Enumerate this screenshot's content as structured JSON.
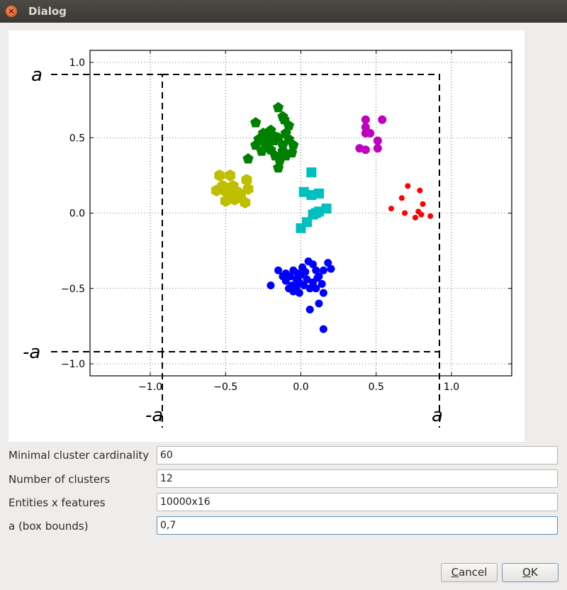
{
  "window": {
    "title": "Dialog",
    "close_icon": "close-icon",
    "close_color": "#e9541f"
  },
  "chart_data": {
    "type": "scatter",
    "xlim": [
      -1.4,
      1.4
    ],
    "ylim": [
      -1.08,
      1.08
    ],
    "x_ticks": [
      -1.0,
      -0.5,
      0.0,
      0.5,
      1.0
    ],
    "x_tick_labels": [
      "−1.0",
      "−0.5",
      "0.0",
      "0.5",
      "1.0"
    ],
    "y_ticks": [
      1.0,
      0.5,
      0.0,
      -0.5,
      -1.0
    ],
    "y_tick_labels": [
      "1.0",
      "0.5",
      "0.0",
      "−0.5",
      "−1.0"
    ],
    "grid": true,
    "box": {
      "bound": 0.92,
      "labels": {
        "left_top": "a",
        "left_bottom": "-a",
        "bottom_left": "-a",
        "bottom_right": "a"
      }
    },
    "series": [
      {
        "color": "#008000",
        "marker": "pentagon",
        "points": [
          [
            -0.3,
            0.6
          ],
          [
            -0.15,
            0.7
          ],
          [
            -0.12,
            0.64
          ],
          [
            -0.2,
            0.55
          ],
          [
            -0.25,
            0.53
          ],
          [
            -0.28,
            0.49
          ],
          [
            -0.3,
            0.45
          ],
          [
            -0.22,
            0.5
          ],
          [
            -0.18,
            0.48
          ],
          [
            -0.15,
            0.5
          ],
          [
            -0.1,
            0.53
          ],
          [
            -0.08,
            0.49
          ],
          [
            -0.05,
            0.45
          ],
          [
            -0.12,
            0.45
          ],
          [
            -0.2,
            0.42
          ],
          [
            -0.26,
            0.41
          ],
          [
            -0.17,
            0.38
          ],
          [
            -0.14,
            0.35
          ],
          [
            -0.1,
            0.38
          ],
          [
            -0.15,
            0.3
          ],
          [
            -0.35,
            0.36
          ],
          [
            -0.22,
            0.45
          ],
          [
            -0.08,
            0.58
          ],
          [
            -0.11,
            0.62
          ],
          [
            -0.19,
            0.52
          ],
          [
            -0.12,
            0.41
          ],
          [
            -0.06,
            0.4
          ],
          [
            -0.24,
            0.47
          ]
        ]
      },
      {
        "color": "#bfbf00",
        "marker": "hexagon",
        "points": [
          [
            -0.54,
            0.25
          ],
          [
            -0.47,
            0.25
          ],
          [
            -0.36,
            0.22
          ],
          [
            -0.52,
            0.18
          ],
          [
            -0.45,
            0.18
          ],
          [
            -0.35,
            0.16
          ],
          [
            -0.56,
            0.15
          ],
          [
            -0.48,
            0.14
          ],
          [
            -0.42,
            0.14
          ],
          [
            -0.4,
            0.12
          ],
          [
            -0.5,
            0.08
          ],
          [
            -0.44,
            0.09
          ],
          [
            -0.37,
            0.07
          ],
          [
            -0.51,
            0.15
          ]
        ]
      },
      {
        "color": "#00bfbf",
        "marker": "square",
        "points": [
          [
            0.07,
            0.27
          ],
          [
            0.02,
            0.14
          ],
          [
            0.07,
            0.12
          ],
          [
            0.12,
            0.13
          ],
          [
            0.17,
            0.03
          ],
          [
            0.08,
            -0.01
          ],
          [
            0.1,
            0.0
          ],
          [
            0.04,
            -0.06
          ],
          [
            0.0,
            -0.1
          ],
          [
            0.12,
            0.01
          ]
        ]
      },
      {
        "color": "#bf00bf",
        "marker": "circle",
        "size": 6,
        "points": [
          [
            0.43,
            0.62
          ],
          [
            0.54,
            0.62
          ],
          [
            0.43,
            0.57
          ],
          [
            0.43,
            0.53
          ],
          [
            0.46,
            0.53
          ],
          [
            0.51,
            0.48
          ],
          [
            0.39,
            0.43
          ],
          [
            0.43,
            0.42
          ],
          [
            0.51,
            0.43
          ]
        ]
      },
      {
        "color": "#ff0000",
        "marker": "circle",
        "size": 4,
        "points": [
          [
            0.71,
            0.18
          ],
          [
            0.79,
            0.15
          ],
          [
            0.67,
            0.1
          ],
          [
            0.81,
            0.06
          ],
          [
            0.6,
            0.03
          ],
          [
            0.69,
            0.0
          ],
          [
            0.78,
            0.01
          ],
          [
            0.8,
            -0.01
          ],
          [
            0.86,
            -0.02
          ],
          [
            0.76,
            -0.03
          ]
        ]
      },
      {
        "color": "#0000ff",
        "marker": "circle",
        "size": 5.5,
        "points": [
          [
            -0.15,
            -0.38
          ],
          [
            -0.12,
            -0.42
          ],
          [
            -0.1,
            -0.45
          ],
          [
            -0.07,
            -0.42
          ],
          [
            -0.05,
            -0.38
          ],
          [
            -0.03,
            -0.44
          ],
          [
            0.0,
            -0.41
          ],
          [
            0.03,
            -0.39
          ],
          [
            0.05,
            -0.32
          ],
          [
            0.08,
            -0.34
          ],
          [
            0.1,
            -0.38
          ],
          [
            0.12,
            -0.42
          ],
          [
            0.15,
            -0.38
          ],
          [
            0.18,
            -0.33
          ],
          [
            0.2,
            -0.37
          ],
          [
            0.14,
            -0.47
          ],
          [
            0.15,
            -0.53
          ],
          [
            0.12,
            -0.6
          ],
          [
            -0.2,
            -0.48
          ],
          [
            -0.08,
            -0.5
          ],
          [
            -0.03,
            -0.49
          ],
          [
            0.02,
            -0.48
          ],
          [
            0.06,
            -0.5
          ],
          [
            0.1,
            -0.5
          ],
          [
            -0.01,
            -0.53
          ],
          [
            -0.05,
            -0.52
          ],
          [
            0.04,
            -0.44
          ],
          [
            -0.01,
            -0.46
          ],
          [
            0.06,
            -0.64
          ],
          [
            0.15,
            -0.77
          ],
          [
            -0.06,
            -0.48
          ],
          [
            0.08,
            -0.46
          ],
          [
            0.01,
            -0.36
          ],
          [
            -0.1,
            -0.4
          ],
          [
            0.11,
            -0.43
          ],
          [
            -0.02,
            -0.4
          ]
        ]
      }
    ]
  },
  "form": {
    "fields": [
      {
        "label": "Minimal cluster cardinality",
        "value": "60"
      },
      {
        "label": "Number of clusters",
        "value": "12"
      },
      {
        "label": "Entities x features",
        "value": "10000x16"
      },
      {
        "label": "a (box bounds)",
        "value": "0,7"
      }
    ]
  },
  "buttons": {
    "cancel": {
      "first": "C",
      "rest": "ancel"
    },
    "ok": {
      "first": "O",
      "rest": "K"
    }
  }
}
